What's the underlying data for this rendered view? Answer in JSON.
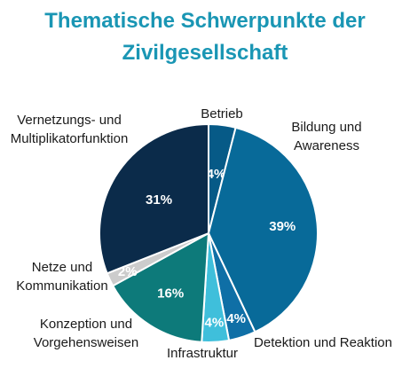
{
  "title_line1": "Thematische Schwerpunkte der",
  "title_line2": "Zivilgesellschaft",
  "chart_data": {
    "type": "pie",
    "title": "Thematische Schwerpunkte der Zivilgesellschaft",
    "start_angle_deg": 0,
    "direction": "clockwise",
    "slices": [
      {
        "label": [
          "Betrieb"
        ],
        "value": 4,
        "display": "4%",
        "color": "#065a87"
      },
      {
        "label": [
          "Bildung und",
          "Awareness"
        ],
        "value": 39,
        "display": "39%",
        "color": "#086a99"
      },
      {
        "label": [
          "Detektion und Reaktion"
        ],
        "value": 4,
        "display": "4%",
        "color": "#0f6fa6"
      },
      {
        "label": [
          "Infrastruktur"
        ],
        "value": 4,
        "display": "4%",
        "color": "#3fbfdb"
      },
      {
        "label": [
          "Konzeption und",
          "Vorgehensweisen"
        ],
        "value": 16,
        "display": "16%",
        "color": "#0d7a7a"
      },
      {
        "label": [
          "Netze und",
          "Kommunikation"
        ],
        "value": 2,
        "display": "2%",
        "color": "#cccccc"
      },
      {
        "label": [
          "Vernetzungs- und",
          "Multiplikatorfunktion"
        ],
        "value": 31,
        "display": "31%",
        "color": "#0b2b4a"
      }
    ]
  }
}
